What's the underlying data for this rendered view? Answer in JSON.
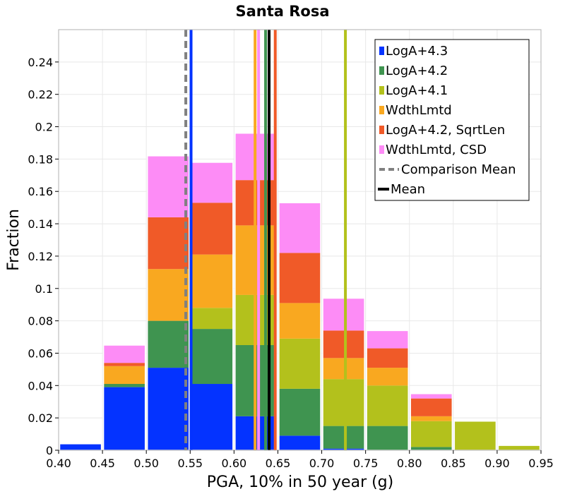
{
  "chart_data": {
    "type": "bar",
    "stacked": true,
    "title": "Santa Rosa",
    "xlabel": "PGA, 10% in 50 year (g)",
    "ylabel": "Fraction",
    "xlim": [
      0.4,
      0.95
    ],
    "ylim": [
      0,
      0.26
    ],
    "xticks": [
      "0.40",
      "0.45",
      "0.50",
      "0.55",
      "0.60",
      "0.65",
      "0.70",
      "0.75",
      "0.80",
      "0.85",
      "0.90",
      "0.95"
    ],
    "yticks": [
      "0",
      "0.02",
      "0.04",
      "0.06",
      "0.08",
      "0.1",
      "0.12",
      "0.14",
      "0.16",
      "0.18",
      "0.2",
      "0.22",
      "0.24"
    ],
    "bins": [
      0.4,
      0.45,
      0.5,
      0.55,
      0.6,
      0.65,
      0.7,
      0.75,
      0.8,
      0.85,
      0.9
    ],
    "bin_width": 0.05,
    "series": [
      {
        "name": "LogA+4.3",
        "color": "#0433ff",
        "values": [
          0.004,
          0.039,
          0.051,
          0.041,
          0.021,
          0.009,
          0.001,
          0.0,
          0.0,
          0.0,
          0.0
        ]
      },
      {
        "name": "LogA+4.2",
        "color": "#3f9450",
        "values": [
          0.0,
          0.002,
          0.029,
          0.034,
          0.044,
          0.029,
          0.014,
          0.015,
          0.002,
          0.0,
          0.0
        ]
      },
      {
        "name": "LogA+4.1",
        "color": "#b3c11c",
        "values": [
          0.0,
          0.0,
          0.0,
          0.013,
          0.031,
          0.031,
          0.029,
          0.025,
          0.016,
          0.018,
          0.003
        ]
      },
      {
        "name": "WdthLmtd",
        "color": "#f9a820",
        "values": [
          0.0,
          0.011,
          0.032,
          0.033,
          0.043,
          0.022,
          0.013,
          0.011,
          0.003,
          0.0,
          0.0
        ]
      },
      {
        "name": "LogA+4.2, SqrtLen",
        "color": "#f05a28",
        "values": [
          0.0,
          0.002,
          0.032,
          0.032,
          0.028,
          0.031,
          0.017,
          0.012,
          0.011,
          0.0,
          0.0
        ]
      },
      {
        "name": "WdthLmtd, CSD",
        "color": "#fd8cf6",
        "values": [
          0.0,
          0.011,
          0.038,
          0.025,
          0.029,
          0.031,
          0.02,
          0.011,
          0.003,
          0.0,
          0.0
        ]
      }
    ],
    "vlines": [
      {
        "name": "LogA+4.3 mean",
        "x": 0.551,
        "color": "#0433ff",
        "style": "solid"
      },
      {
        "name": "LogA+4.2 mean",
        "x": 0.636,
        "color": "#3f9450",
        "style": "solid"
      },
      {
        "name": "LogA+4.1 mean",
        "x": 0.727,
        "color": "#b3c11c",
        "style": "solid"
      },
      {
        "name": "WdthLmtd mean",
        "x": 0.624,
        "color": "#f9a820",
        "style": "solid"
      },
      {
        "name": "LogA+4.2, SqrtLen mean",
        "x": 0.647,
        "color": "#f05a28",
        "style": "solid"
      },
      {
        "name": "WdthLmtd, CSD mean",
        "x": 0.628,
        "color": "#fd8cf6",
        "style": "solid"
      },
      {
        "name": "Comparison Mean",
        "x": 0.545,
        "color": "#808080",
        "style": "dashed"
      },
      {
        "name": "Mean",
        "x": 0.64,
        "color": "#000000",
        "style": "solid"
      }
    ],
    "legend": {
      "position": "top-right",
      "entries": [
        {
          "label": "LogA+4.3",
          "color": "#0433ff",
          "kind": "box"
        },
        {
          "label": "LogA+4.2",
          "color": "#3f9450",
          "kind": "box"
        },
        {
          "label": "LogA+4.1",
          "color": "#b3c11c",
          "kind": "box"
        },
        {
          "label": "WdthLmtd",
          "color": "#f9a820",
          "kind": "box"
        },
        {
          "label": "LogA+4.2, SqrtLen",
          "color": "#f05a28",
          "kind": "box"
        },
        {
          "label": "WdthLmtd, CSD",
          "color": "#fd8cf6",
          "kind": "box"
        },
        {
          "label": "Comparison Mean",
          "color": "#808080",
          "kind": "dashed"
        },
        {
          "label": "Mean",
          "color": "#000000",
          "kind": "line"
        }
      ]
    },
    "grid": true
  }
}
